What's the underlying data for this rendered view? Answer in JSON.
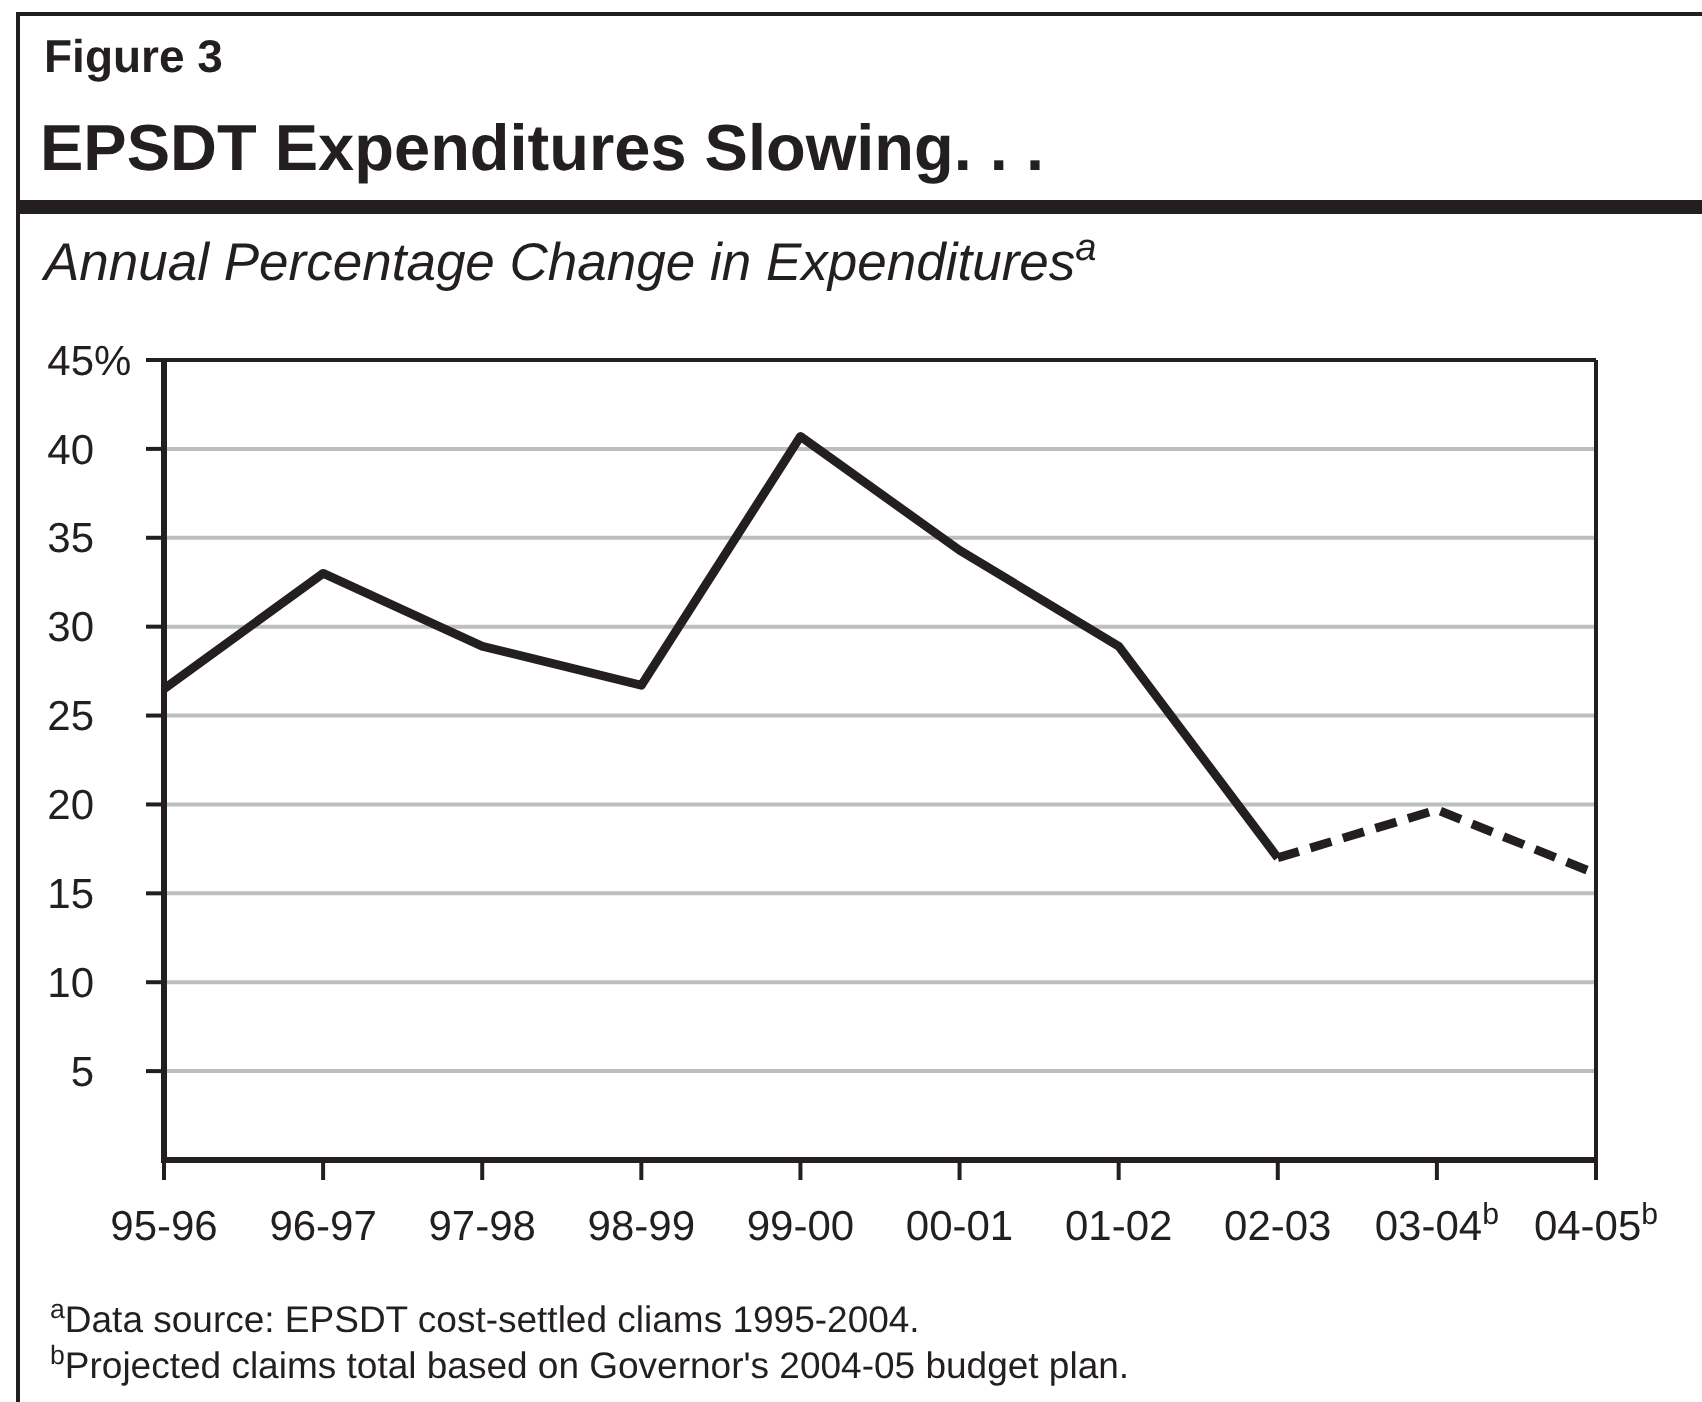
{
  "chart_data": {
    "type": "line",
    "title": "EPSDT Expenditures Slowing. . .",
    "subtitle": "Annual Percentage Change in Expenditures$^{a}$",
    "categories": [
      "95-96",
      "96-97",
      "97-98",
      "98-99",
      "99-00",
      "00-01",
      "01-02",
      "02-03",
      "03-04$^{b}$",
      "04-05$^{b}$"
    ],
    "series": [
      {
        "color": "#231f20",
        "line_style": "solid",
        "values": [
          26.5,
          33.0,
          28.9,
          26.7,
          40.7,
          34.3,
          28.9,
          17.0,
          null,
          null
        ]
      },
      {
        "color": "#231f20",
        "line_style": "dashed",
        "values": [
          null,
          null,
          null,
          null,
          null,
          null,
          null,
          17.0,
          19.7,
          16.1
        ]
      }
    ],
    "ylim": [
      0,
      45
    ],
    "yticks": [
      5,
      10,
      15,
      20,
      25,
      30,
      35,
      40,
      {
        "value": 45,
        "label": "45%"
      }
    ],
    "grid": "y",
    "annotations": [
      "Figure 3",
      "$^{a}$Data source: EPSDT cost-settled cliams 1995-2004.",
      "$^{b}$Projected claims total based on Governor's 2004-05 budget plan."
    ]
  }
}
